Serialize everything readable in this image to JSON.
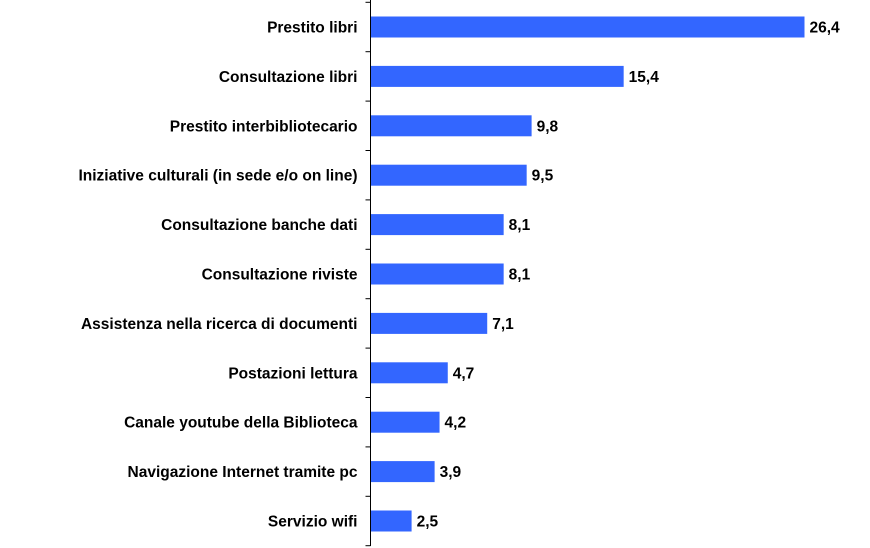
{
  "chart_data": {
    "type": "bar",
    "orientation": "horizontal",
    "categories": [
      "Prestito libri",
      "Consultazione libri",
      "Prestito interbibliotecario",
      "Iniziative culturali (in sede e/o on line)",
      "Consultazione banche dati",
      "Consultazione riviste",
      "Assistenza nella ricerca di documenti",
      "Postazioni lettura",
      "Canale youtube della Biblioteca",
      "Navigazione Internet tramite pc",
      "Servizio wifi"
    ],
    "values": [
      26.4,
      15.4,
      9.8,
      9.5,
      8.1,
      8.1,
      7.1,
      4.7,
      4.2,
      3.9,
      2.5
    ],
    "value_labels": [
      "26,4",
      "15,4",
      "9,8",
      "9,5",
      "8,1",
      "8,1",
      "7,1",
      "4,7",
      "4,2",
      "3,9",
      "2,5"
    ],
    "xlim": [
      0,
      26.4
    ],
    "grid": false,
    "legend": "none",
    "bar_color": "#3366FF",
    "axis_color": "#000000"
  }
}
